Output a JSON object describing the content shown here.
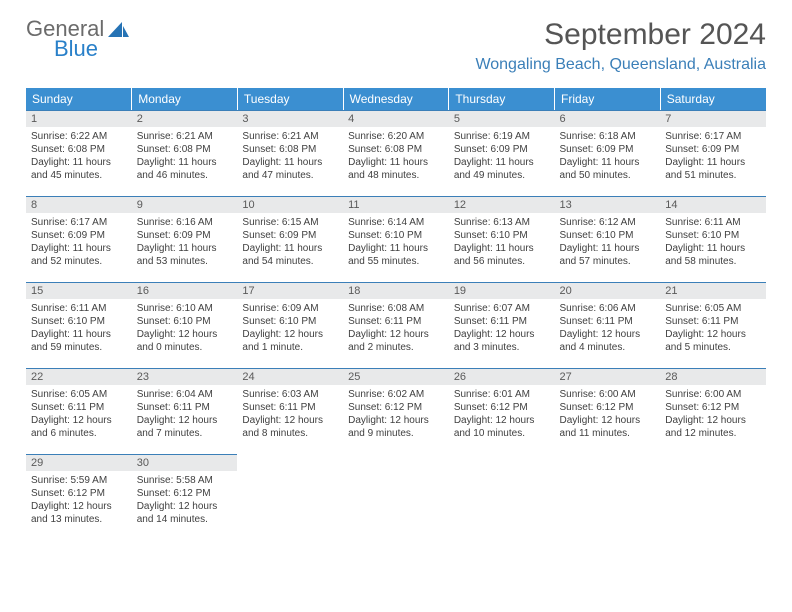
{
  "brand": {
    "word1": "General",
    "word2": "Blue",
    "color_general": "#6b6b6b",
    "color_blue": "#2980c9",
    "icon_color": "#2673b5"
  },
  "title": "September 2024",
  "location": "Wongaling Beach, Queensland, Australia",
  "header_bg": "#3b8fd1",
  "accent_color": "#3b7fb8",
  "daynum_bg": "#e8e9ea",
  "weekdays": [
    "Sunday",
    "Monday",
    "Tuesday",
    "Wednesday",
    "Thursday",
    "Friday",
    "Saturday"
  ],
  "weeks": [
    [
      {
        "n": "1",
        "sunrise": "Sunrise: 6:22 AM",
        "sunset": "Sunset: 6:08 PM",
        "day1": "Daylight: 11 hours",
        "day2": "and 45 minutes."
      },
      {
        "n": "2",
        "sunrise": "Sunrise: 6:21 AM",
        "sunset": "Sunset: 6:08 PM",
        "day1": "Daylight: 11 hours",
        "day2": "and 46 minutes."
      },
      {
        "n": "3",
        "sunrise": "Sunrise: 6:21 AM",
        "sunset": "Sunset: 6:08 PM",
        "day1": "Daylight: 11 hours",
        "day2": "and 47 minutes."
      },
      {
        "n": "4",
        "sunrise": "Sunrise: 6:20 AM",
        "sunset": "Sunset: 6:08 PM",
        "day1": "Daylight: 11 hours",
        "day2": "and 48 minutes."
      },
      {
        "n": "5",
        "sunrise": "Sunrise: 6:19 AM",
        "sunset": "Sunset: 6:09 PM",
        "day1": "Daylight: 11 hours",
        "day2": "and 49 minutes."
      },
      {
        "n": "6",
        "sunrise": "Sunrise: 6:18 AM",
        "sunset": "Sunset: 6:09 PM",
        "day1": "Daylight: 11 hours",
        "day2": "and 50 minutes."
      },
      {
        "n": "7",
        "sunrise": "Sunrise: 6:17 AM",
        "sunset": "Sunset: 6:09 PM",
        "day1": "Daylight: 11 hours",
        "day2": "and 51 minutes."
      }
    ],
    [
      {
        "n": "8",
        "sunrise": "Sunrise: 6:17 AM",
        "sunset": "Sunset: 6:09 PM",
        "day1": "Daylight: 11 hours",
        "day2": "and 52 minutes."
      },
      {
        "n": "9",
        "sunrise": "Sunrise: 6:16 AM",
        "sunset": "Sunset: 6:09 PM",
        "day1": "Daylight: 11 hours",
        "day2": "and 53 minutes."
      },
      {
        "n": "10",
        "sunrise": "Sunrise: 6:15 AM",
        "sunset": "Sunset: 6:09 PM",
        "day1": "Daylight: 11 hours",
        "day2": "and 54 minutes."
      },
      {
        "n": "11",
        "sunrise": "Sunrise: 6:14 AM",
        "sunset": "Sunset: 6:10 PM",
        "day1": "Daylight: 11 hours",
        "day2": "and 55 minutes."
      },
      {
        "n": "12",
        "sunrise": "Sunrise: 6:13 AM",
        "sunset": "Sunset: 6:10 PM",
        "day1": "Daylight: 11 hours",
        "day2": "and 56 minutes."
      },
      {
        "n": "13",
        "sunrise": "Sunrise: 6:12 AM",
        "sunset": "Sunset: 6:10 PM",
        "day1": "Daylight: 11 hours",
        "day2": "and 57 minutes."
      },
      {
        "n": "14",
        "sunrise": "Sunrise: 6:11 AM",
        "sunset": "Sunset: 6:10 PM",
        "day1": "Daylight: 11 hours",
        "day2": "and 58 minutes."
      }
    ],
    [
      {
        "n": "15",
        "sunrise": "Sunrise: 6:11 AM",
        "sunset": "Sunset: 6:10 PM",
        "day1": "Daylight: 11 hours",
        "day2": "and 59 minutes."
      },
      {
        "n": "16",
        "sunrise": "Sunrise: 6:10 AM",
        "sunset": "Sunset: 6:10 PM",
        "day1": "Daylight: 12 hours",
        "day2": "and 0 minutes."
      },
      {
        "n": "17",
        "sunrise": "Sunrise: 6:09 AM",
        "sunset": "Sunset: 6:10 PM",
        "day1": "Daylight: 12 hours",
        "day2": "and 1 minute."
      },
      {
        "n": "18",
        "sunrise": "Sunrise: 6:08 AM",
        "sunset": "Sunset: 6:11 PM",
        "day1": "Daylight: 12 hours",
        "day2": "and 2 minutes."
      },
      {
        "n": "19",
        "sunrise": "Sunrise: 6:07 AM",
        "sunset": "Sunset: 6:11 PM",
        "day1": "Daylight: 12 hours",
        "day2": "and 3 minutes."
      },
      {
        "n": "20",
        "sunrise": "Sunrise: 6:06 AM",
        "sunset": "Sunset: 6:11 PM",
        "day1": "Daylight: 12 hours",
        "day2": "and 4 minutes."
      },
      {
        "n": "21",
        "sunrise": "Sunrise: 6:05 AM",
        "sunset": "Sunset: 6:11 PM",
        "day1": "Daylight: 12 hours",
        "day2": "and 5 minutes."
      }
    ],
    [
      {
        "n": "22",
        "sunrise": "Sunrise: 6:05 AM",
        "sunset": "Sunset: 6:11 PM",
        "day1": "Daylight: 12 hours",
        "day2": "and 6 minutes."
      },
      {
        "n": "23",
        "sunrise": "Sunrise: 6:04 AM",
        "sunset": "Sunset: 6:11 PM",
        "day1": "Daylight: 12 hours",
        "day2": "and 7 minutes."
      },
      {
        "n": "24",
        "sunrise": "Sunrise: 6:03 AM",
        "sunset": "Sunset: 6:11 PM",
        "day1": "Daylight: 12 hours",
        "day2": "and 8 minutes."
      },
      {
        "n": "25",
        "sunrise": "Sunrise: 6:02 AM",
        "sunset": "Sunset: 6:12 PM",
        "day1": "Daylight: 12 hours",
        "day2": "and 9 minutes."
      },
      {
        "n": "26",
        "sunrise": "Sunrise: 6:01 AM",
        "sunset": "Sunset: 6:12 PM",
        "day1": "Daylight: 12 hours",
        "day2": "and 10 minutes."
      },
      {
        "n": "27",
        "sunrise": "Sunrise: 6:00 AM",
        "sunset": "Sunset: 6:12 PM",
        "day1": "Daylight: 12 hours",
        "day2": "and 11 minutes."
      },
      {
        "n": "28",
        "sunrise": "Sunrise: 6:00 AM",
        "sunset": "Sunset: 6:12 PM",
        "day1": "Daylight: 12 hours",
        "day2": "and 12 minutes."
      }
    ],
    [
      {
        "n": "29",
        "sunrise": "Sunrise: 5:59 AM",
        "sunset": "Sunset: 6:12 PM",
        "day1": "Daylight: 12 hours",
        "day2": "and 13 minutes."
      },
      {
        "n": "30",
        "sunrise": "Sunrise: 5:58 AM",
        "sunset": "Sunset: 6:12 PM",
        "day1": "Daylight: 12 hours",
        "day2": "and 14 minutes."
      },
      null,
      null,
      null,
      null,
      null
    ]
  ]
}
